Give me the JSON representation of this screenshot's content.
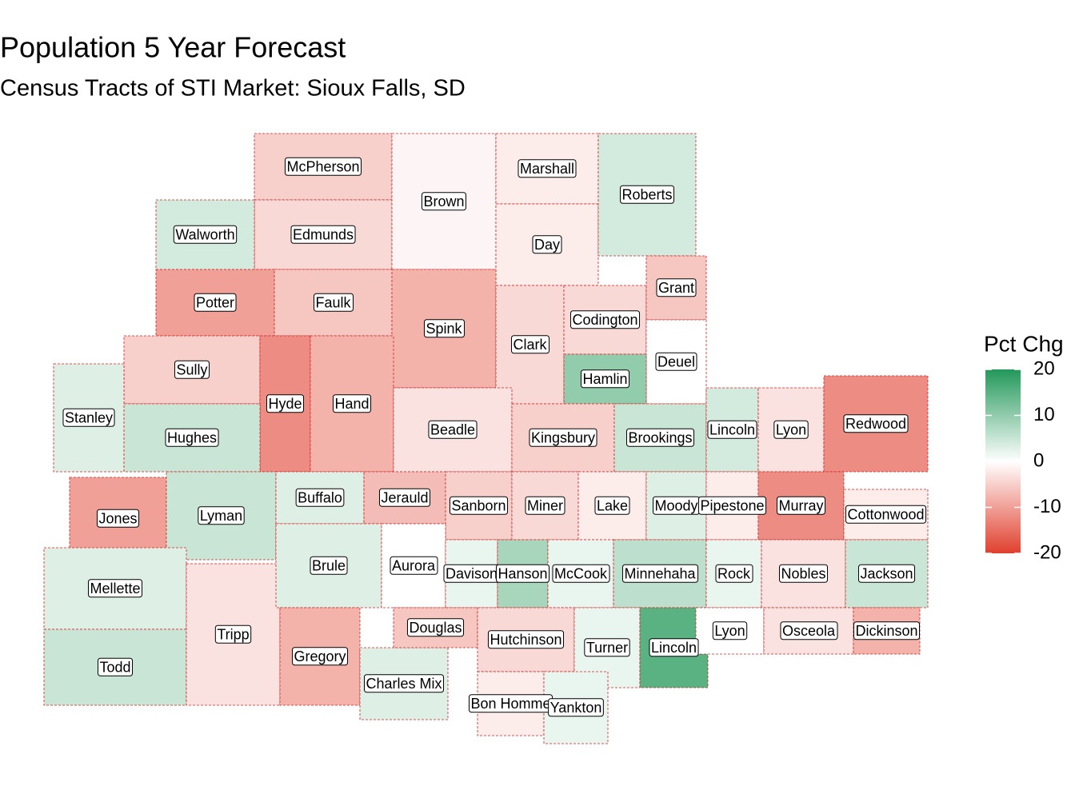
{
  "title": "Population 5 Year Forecast",
  "subtitle": "Census Tracts of STI Market: Sioux Falls, SD",
  "legend": {
    "title": "Pct Chg",
    "lim": [
      -20,
      20
    ],
    "ticks": [
      20,
      10,
      0,
      -10,
      -20
    ],
    "low_color": "#e0402e",
    "mid_color": "#ffffff",
    "high_color": "#23985a"
  },
  "regions": [
    {
      "name": "McPherson",
      "value": -5
    },
    {
      "name": "Edmunds",
      "value": -4
    },
    {
      "name": "Brown",
      "value": -1
    },
    {
      "name": "Marshall",
      "value": -2
    },
    {
      "name": "Day",
      "value": -2
    },
    {
      "name": "Roberts",
      "value": 4
    },
    {
      "name": "Walworth",
      "value": 4
    },
    {
      "name": "Potter",
      "value": -10
    },
    {
      "name": "Faulk",
      "value": -6
    },
    {
      "name": "Spink",
      "value": -8
    },
    {
      "name": "Clark",
      "value": -4
    },
    {
      "name": "Codington",
      "value": -4
    },
    {
      "name": "Grant",
      "value": -6
    },
    {
      "name": "Deuel",
      "value": 0
    },
    {
      "name": "Hamlin",
      "value": 10
    },
    {
      "name": "Sully",
      "value": -5
    },
    {
      "name": "Hyde",
      "value": -12
    },
    {
      "name": "Hand",
      "value": -8
    },
    {
      "name": "Stanley",
      "value": 3
    },
    {
      "name": "Hughes",
      "value": 5
    },
    {
      "name": "Beadle",
      "value": -3
    },
    {
      "name": "Kingsbury",
      "value": -5
    },
    {
      "name": "Brookings",
      "value": 5
    },
    {
      "name": "Lincoln",
      "value": 4
    },
    {
      "name": "Lyon",
      "value": -3
    },
    {
      "name": "Redwood",
      "value": -12
    },
    {
      "name": "Jones",
      "value": -10
    },
    {
      "name": "Lyman",
      "value": 5
    },
    {
      "name": "Buffalo",
      "value": 3
    },
    {
      "name": "Jerauld",
      "value": -7
    },
    {
      "name": "Sanborn",
      "value": -5
    },
    {
      "name": "Miner",
      "value": -4
    },
    {
      "name": "Lake",
      "value": -2
    },
    {
      "name": "Moody",
      "value": 3
    },
    {
      "name": "Pipestone",
      "value": -2
    },
    {
      "name": "Murray",
      "value": -12
    },
    {
      "name": "Cottonwood",
      "value": -2
    },
    {
      "name": "Mellette",
      "value": 3
    },
    {
      "name": "Todd",
      "value": 5
    },
    {
      "name": "Tripp",
      "value": -3
    },
    {
      "name": "Brule",
      "value": 3
    },
    {
      "name": "Aurora",
      "value": 0
    },
    {
      "name": "Davison",
      "value": 2
    },
    {
      "name": "Hanson",
      "value": 8
    },
    {
      "name": "McCook",
      "value": 2
    },
    {
      "name": "Minnehaha",
      "value": 6
    },
    {
      "name": "Rock",
      "value": 2
    },
    {
      "name": "Nobles",
      "value": -3
    },
    {
      "name": "Jackson",
      "value": 5
    },
    {
      "name": "Gregory",
      "value": -8
    },
    {
      "name": "Charles Mix",
      "value": 3
    },
    {
      "name": "Douglas",
      "value": -6
    },
    {
      "name": "Hutchinson",
      "value": -4
    },
    {
      "name": "Turner",
      "value": 2
    },
    {
      "name": "Lincoln",
      "value": 15
    },
    {
      "name": "Lyon",
      "value": 0
    },
    {
      "name": "Osceola",
      "value": -3
    },
    {
      "name": "Dickinson",
      "value": -8
    },
    {
      "name": "Bon Homme",
      "value": -2
    },
    {
      "name": "Yankton",
      "value": 2
    }
  ]
}
